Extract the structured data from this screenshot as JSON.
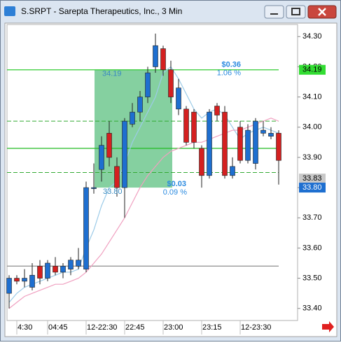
{
  "window_title": "S.SRPT - Sarepta Therapeutics, Inc., 3 Min",
  "chart_data": {
    "type": "candlestick",
    "categories": [
      null,
      "4:30",
      null,
      null,
      null,
      "04:45",
      null,
      null,
      null,
      null,
      "12-22:30",
      null,
      null,
      null,
      null,
      "22:45",
      null,
      null,
      null,
      null,
      "23:00",
      null,
      null,
      null,
      null,
      "23:15",
      null,
      null,
      null,
      null,
      "12-23:30",
      null,
      null,
      null,
      null,
      null
    ],
    "open": [
      33.45,
      33.5,
      33.49,
      33.47,
      33.54,
      33.5,
      33.54,
      33.52,
      33.53,
      33.54,
      33.53,
      33.8,
      33.86,
      33.98,
      33.87,
      33.8,
      34.01,
      34.05,
      34.1,
      34.2,
      34.26,
      34.19,
      34.06,
      34.06,
      34.05,
      33.93,
      33.84,
      34.07,
      34.05,
      33.84,
      34.0,
      33.89,
      33.88,
      33.98,
      33.97,
      33.98
    ],
    "high": [
      33.51,
      33.51,
      33.53,
      33.55,
      33.56,
      33.56,
      33.57,
      33.55,
      33.57,
      33.6,
      33.82,
      33.88,
      33.97,
      34.02,
      33.9,
      34.03,
      34.08,
      34.12,
      34.2,
      34.31,
      34.27,
      34.22,
      34.16,
      34.07,
      34.06,
      33.94,
      34.06,
      34.08,
      34.07,
      33.9,
      34.02,
      34.01,
      34.03,
      34.02,
      34.0,
      33.99
    ],
    "low": [
      33.4,
      33.48,
      33.47,
      33.46,
      33.48,
      33.49,
      33.51,
      33.5,
      33.51,
      33.53,
      33.52,
      33.78,
      33.82,
      33.87,
      33.77,
      33.7,
      34.0,
      34.02,
      34.08,
      34.18,
      34.17,
      34.08,
      34.04,
      33.94,
      33.93,
      33.8,
      33.83,
      34.02,
      33.83,
      33.83,
      33.88,
      33.88,
      33.86,
      33.97,
      33.96,
      33.81
    ],
    "close": [
      33.5,
      33.49,
      33.5,
      33.51,
      33.5,
      33.55,
      33.52,
      33.54,
      33.56,
      33.56,
      33.8,
      33.8,
      33.94,
      33.9,
      33.8,
      34.02,
      34.05,
      34.1,
      34.18,
      34.27,
      34.19,
      34.1,
      34.13,
      33.95,
      33.95,
      33.84,
      34.05,
      34.04,
      33.84,
      33.87,
      33.89,
      33.99,
      34.02,
      33.99,
      33.98,
      33.89
    ],
    "up_color": "#1e6fd0",
    "down_color": "#d42020",
    "averages": [
      {
        "color": "#9ccbe8",
        "values": [
          33.42,
          33.45,
          33.47,
          33.48,
          33.49,
          33.5,
          33.51,
          33.52,
          33.52,
          33.53,
          33.6,
          33.66,
          33.74,
          33.8,
          33.82,
          33.88,
          33.95,
          34.0,
          34.05,
          34.1,
          34.18,
          34.2,
          34.16,
          34.11,
          34.06,
          34.03,
          34.05,
          34.06,
          34.04,
          34.0,
          33.96,
          33.98,
          33.99,
          34.0,
          33.99,
          33.98
        ]
      },
      {
        "color": "#f0a0c0",
        "values": [
          33.4,
          33.42,
          33.44,
          33.45,
          33.46,
          33.47,
          33.48,
          33.48,
          33.49,
          33.5,
          33.52,
          33.55,
          33.58,
          33.62,
          33.66,
          33.7,
          33.75,
          33.8,
          33.84,
          33.87,
          33.9,
          33.92,
          33.93,
          33.94,
          33.95,
          33.95,
          33.96,
          33.97,
          33.98,
          33.99,
          33.99,
          34.0,
          34.01,
          34.02,
          34.03,
          34.02
        ]
      }
    ],
    "levels": [
      {
        "value": 34.19,
        "color": "#33cc33",
        "dashed": false
      },
      {
        "value": 34.02,
        "color": "#33aa33",
        "dashed": true
      },
      {
        "value": 33.93,
        "color": "#22bb22",
        "dashed": false
      },
      {
        "value": 33.85,
        "color": "#33aa33",
        "dashed": true
      },
      {
        "value": 33.54,
        "color": "#999999",
        "dashed": false
      }
    ],
    "measure": {
      "high": 34.19,
      "low": {
        "value": 33.8,
        "label": "33.80"
      },
      "color": "#5cc080",
      "change": "$0.36",
      "change_pct": "1.06 %",
      "change_low": "$0.03",
      "change_low_pct": "0.09 %"
    },
    "ylim": [
      33.36,
      34.34
    ],
    "yticks": [
      {
        "value": 33.4,
        "label": "33.40"
      },
      {
        "value": 33.5,
        "label": "33.50"
      },
      {
        "value": 33.6,
        "label": "33.60"
      },
      {
        "value": 33.7,
        "label": "33.70"
      },
      {
        "value": 33.8,
        "label": "33.80"
      },
      {
        "value": 33.9,
        "label": "33.90"
      },
      {
        "value": 34.0,
        "label": "34.00"
      },
      {
        "value": 34.1,
        "label": "34.10"
      },
      {
        "value": 34.2,
        "label": "34.20"
      },
      {
        "value": 34.3,
        "label": "34.30"
      }
    ],
    "price_tags": [
      {
        "value": 34.19,
        "color": "#33dd33",
        "text_color": "#000000"
      },
      {
        "value": 33.83,
        "color": "#c8c8c8",
        "text_color": "#000000"
      },
      {
        "value": {
          "value": 33.8,
          "label": "33.80"
        },
        "color": "#1e6fd0",
        "text_color": "#ffffff"
      }
    ]
  }
}
